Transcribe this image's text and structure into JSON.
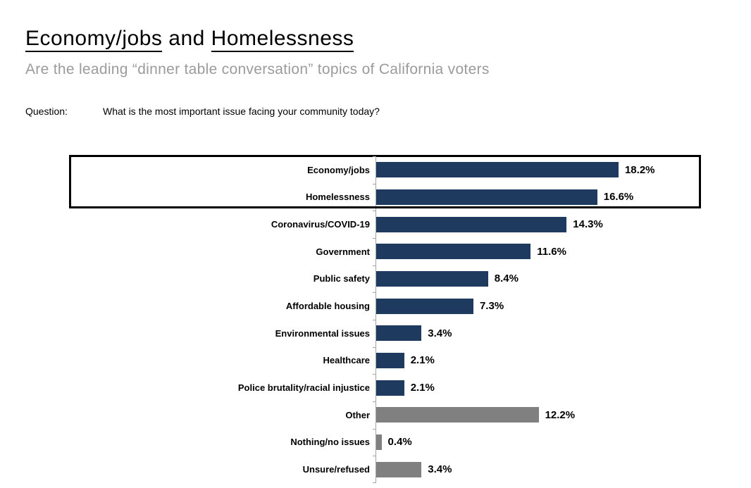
{
  "header": {
    "title_part1": "Economy/jobs",
    "title_connector": " and ",
    "title_part2": "Homelessness",
    "subtitle": "Are the leading “dinner table conversation” topics of California voters",
    "question_label": "Question:",
    "question_text": "What is the most important issue facing your community today?"
  },
  "colors": {
    "bar_navy": "#1f3a5f",
    "bar_gray": "#808080",
    "subtitle_gray": "#9b9b9b",
    "axis_gray": "#a6a6a6",
    "highlight_box_border": "#000000"
  },
  "chart_data": {
    "type": "bar",
    "orientation": "horizontal",
    "title": "",
    "xlabel": "",
    "ylabel": "",
    "value_suffix": "%",
    "xlim": [
      0,
      20
    ],
    "gridlines": false,
    "legend": "none",
    "value_axis_visible": false,
    "categories": [
      "Economy/jobs",
      "Homelessness",
      "Coronavirus/COVID-19",
      "Government",
      "Public safety",
      "Affordable housing",
      "Environmental issues",
      "Healthcare",
      "Police brutality/racial injustice",
      "Other",
      "Nothing/no issues",
      "Unsure/refused"
    ],
    "values": [
      18.2,
      16.6,
      14.3,
      11.6,
      8.4,
      7.3,
      3.4,
      2.1,
      2.1,
      12.2,
      0.4,
      3.4
    ],
    "value_labels": [
      "18.2%",
      "16.6%",
      "14.3%",
      "11.6%",
      "8.4%",
      "7.3%",
      "3.4%",
      "2.1%",
      "2.1%",
      "12.2%",
      "0.4%",
      "3.4%"
    ],
    "bar_colors": [
      "navy",
      "navy",
      "navy",
      "navy",
      "navy",
      "navy",
      "navy",
      "navy",
      "navy",
      "gray",
      "gray",
      "gray"
    ],
    "highlighted_categories": [
      "Economy/jobs",
      "Homelessness"
    ]
  }
}
